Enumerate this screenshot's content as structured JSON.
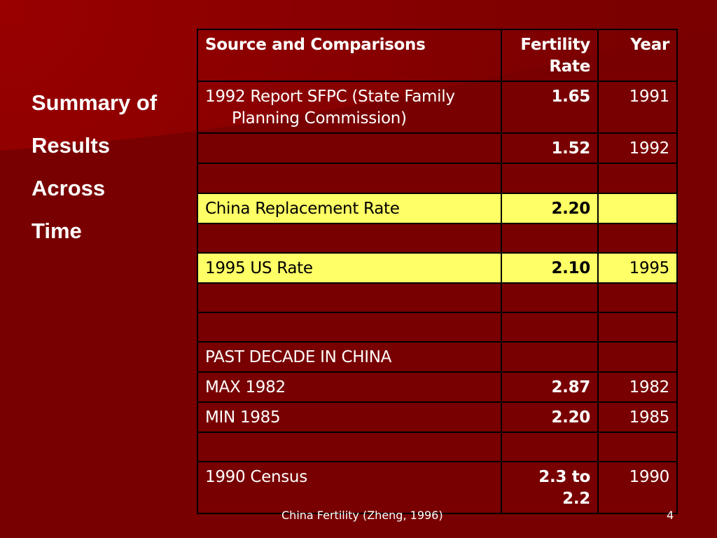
{
  "slide": {
    "side_title": [
      "Summary of",
      "Results",
      "Across",
      "Time"
    ],
    "footer_text": "China Fertility  (Zheng, 1996)",
    "page_number": "4",
    "colors": {
      "background": "#7a0000",
      "highlight": "#ffff66",
      "text": "#ffffff"
    }
  },
  "table": {
    "headers": {
      "source": "Source and Comparisons",
      "rate": "Fertility Rate",
      "year": "Year"
    },
    "rows": [
      {
        "source": "1992 Report SFPC (State Family",
        "source_cont": "Planning Commission)",
        "rate": "1.65",
        "year": "1991"
      },
      {
        "source": "",
        "rate": "1.52",
        "year": "1992"
      },
      {
        "source": "",
        "rate": "",
        "year": ""
      },
      {
        "source": "China Replacement Rate",
        "rate": "2.20",
        "year": ""
      },
      {
        "source": "",
        "rate": "",
        "year": ""
      },
      {
        "source": "1995 US Rate",
        "rate": "2.10",
        "year": "1995"
      },
      {
        "source": "",
        "rate": "",
        "year": ""
      },
      {
        "source": "",
        "rate": "",
        "year": ""
      },
      {
        "source": "PAST DECADE IN CHINA",
        "rate": "",
        "year": ""
      },
      {
        "source": "MAX 1982",
        "rate": "2.87",
        "year": "1982"
      },
      {
        "source": "MIN 1985",
        "rate": "2.20",
        "year": "1985"
      },
      {
        "source": "",
        "rate": "",
        "year": ""
      },
      {
        "source": "1990 Census",
        "rate": "2.3 to 2.2",
        "year": "1990"
      }
    ]
  }
}
